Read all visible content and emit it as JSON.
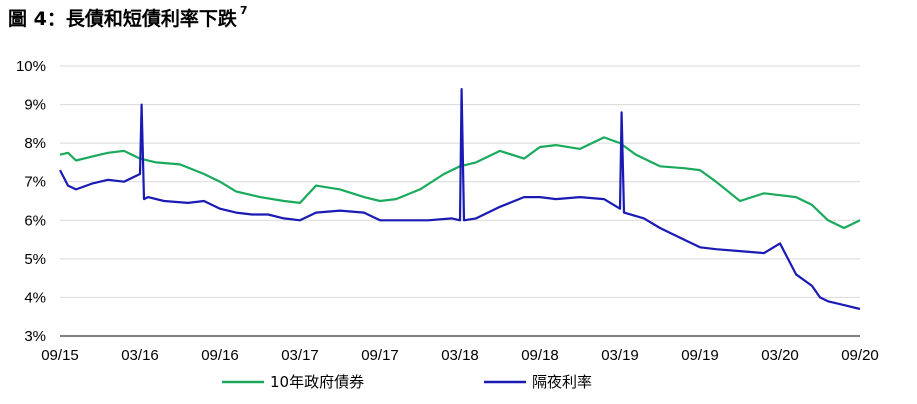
{
  "title": {
    "main": "圖 4：長債和短債利率下跌",
    "footnote": "7"
  },
  "colors": {
    "bond_10y": "#1aaa5c",
    "overnight": "#1a1ab4",
    "axis": "#000000",
    "grid": "#d9d9d9"
  },
  "chart_data": {
    "type": "line",
    "title": "圖 4：長債和短債利率下跌",
    "xlabel": "",
    "ylabel": "",
    "ylim": [
      3,
      10
    ],
    "y_ticks": [
      "3%",
      "4%",
      "5%",
      "6%",
      "7%",
      "8%",
      "9%",
      "10%"
    ],
    "x_ticks": [
      "09/15",
      "03/16",
      "09/16",
      "03/17",
      "09/17",
      "03/18",
      "09/18",
      "03/19",
      "09/19",
      "03/20",
      "09/20"
    ],
    "grid": "horizontal",
    "legend": "bottom",
    "series": [
      {
        "name": "10年政府債券",
        "color": "#1aaa5c",
        "x": [
          0,
          0.1,
          0.2,
          0.4,
          0.6,
          0.8,
          1.0,
          1.2,
          1.5,
          1.8,
          2.0,
          2.2,
          2.5,
          2.8,
          3.0,
          3.2,
          3.5,
          3.8,
          4.0,
          4.2,
          4.5,
          4.8,
          5.0,
          5.2,
          5.5,
          5.8,
          6.0,
          6.2,
          6.5,
          6.8,
          7.0,
          7.2,
          7.5,
          7.8,
          8.0,
          8.2,
          8.5,
          8.8,
          9.0,
          9.2,
          9.4,
          9.6,
          9.8,
          10.0
        ],
        "y": [
          7.7,
          7.75,
          7.55,
          7.65,
          7.75,
          7.8,
          7.6,
          7.5,
          7.45,
          7.2,
          7.0,
          6.75,
          6.6,
          6.5,
          6.45,
          6.9,
          6.8,
          6.6,
          6.5,
          6.55,
          6.8,
          7.2,
          7.4,
          7.5,
          7.8,
          7.6,
          7.9,
          7.95,
          7.85,
          8.15,
          8.0,
          7.7,
          7.4,
          7.35,
          7.3,
          7.0,
          6.5,
          6.7,
          6.65,
          6.6,
          6.4,
          6.0,
          5.8,
          6.0
        ]
      },
      {
        "name": "隔夜利率",
        "color": "#1a1ab4",
        "x": [
          0,
          0.1,
          0.2,
          0.4,
          0.6,
          0.8,
          1.0,
          1.02,
          1.05,
          1.1,
          1.3,
          1.6,
          1.8,
          2.0,
          2.2,
          2.4,
          2.6,
          2.8,
          3.0,
          3.2,
          3.5,
          3.8,
          4.0,
          4.3,
          4.6,
          4.9,
          5.0,
          5.02,
          5.05,
          5.2,
          5.5,
          5.8,
          6.0,
          6.2,
          6.5,
          6.8,
          7.0,
          7.02,
          7.05,
          7.3,
          7.5,
          7.8,
          8.0,
          8.2,
          8.5,
          8.8,
          9.0,
          9.2,
          9.4,
          9.5,
          9.6,
          9.8,
          10.0
        ],
        "y": [
          7.3,
          6.9,
          6.8,
          6.95,
          7.05,
          7.0,
          7.2,
          9.0,
          6.55,
          6.6,
          6.5,
          6.45,
          6.5,
          6.3,
          6.2,
          6.15,
          6.15,
          6.05,
          6.0,
          6.2,
          6.25,
          6.2,
          6.0,
          6.0,
          6.0,
          6.05,
          6.0,
          9.4,
          6.0,
          6.05,
          6.35,
          6.6,
          6.6,
          6.55,
          6.6,
          6.55,
          6.3,
          8.8,
          6.2,
          6.05,
          5.8,
          5.5,
          5.3,
          5.25,
          5.2,
          5.15,
          5.4,
          4.6,
          4.3,
          4.0,
          3.9,
          3.8,
          3.7
        ]
      }
    ]
  }
}
